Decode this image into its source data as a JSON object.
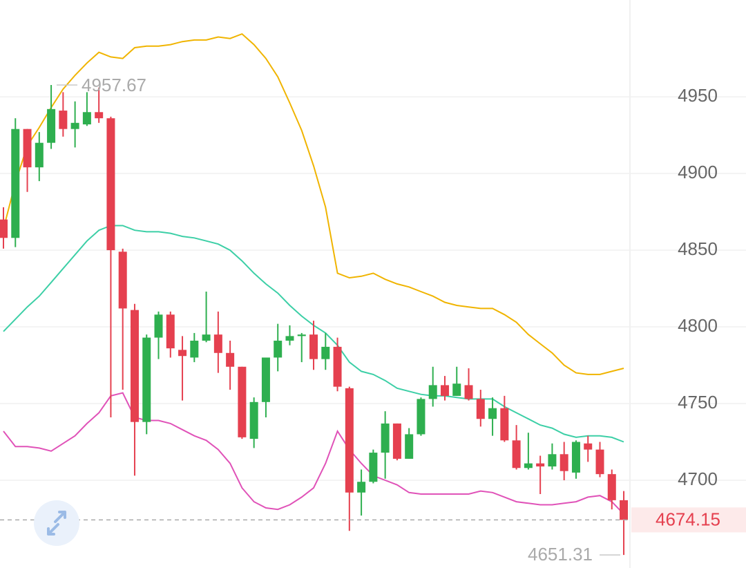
{
  "chart_data": {
    "type": "candlestick",
    "up_color": "#2eaf4f",
    "down_color": "#e5404f",
    "open": [
      4870,
      4858,
      4929,
      4904,
      4920,
      4941,
      4929,
      4932,
      4940,
      4936,
      4849,
      4811,
      4738,
      4793,
      4808,
      4785,
      4780,
      4791,
      4795,
      4783,
      4774,
      4727,
      4751,
      4780,
      4791,
      4794,
      4795,
      4779,
      4787,
      4760,
      4692,
      4699,
      4718,
      4737,
      4714,
      4730,
      4753,
      4762,
      4755,
      4762,
      4753,
      4740,
      4747,
      4726,
      4708,
      4711,
      4709,
      4717,
      4705,
      4724,
      4720,
      4704,
      4687
    ],
    "high": [
      4878,
      4936,
      4929,
      4927,
      4957.67,
      4953,
      4947,
      4953,
      4956,
      4937,
      4851,
      4815,
      4795,
      4810,
      4810,
      4794,
      4796,
      4823,
      4810,
      4791,
      4774,
      4754,
      4780,
      4802,
      4801,
      4796,
      4804,
      4796,
      4793,
      4761,
      4707,
      4720,
      4745,
      4737,
      4734,
      4754,
      4774,
      4768,
      4774,
      4773,
      4759,
      4754,
      4755,
      4736,
      4731,
      4716,
      4724,
      4725,
      4726,
      4729,
      4725,
      4707,
      4693
    ],
    "low": [
      4851,
      4852,
      4888,
      4895,
      4916,
      4924,
      4917,
      4931,
      4933,
      4741,
      4759,
      4703,
      4730,
      4779,
      4780,
      4752,
      4777,
      4790,
      4770,
      4759,
      4727,
      4721,
      4741,
      4771,
      4788,
      4777,
      4772,
      4772,
      4758,
      4667,
      4677,
      4698,
      4701,
      4713,
      4714,
      4729,
      4748,
      4752,
      4755,
      4752,
      4735,
      4729,
      4725,
      4707,
      4707,
      4691,
      4707,
      4700,
      4701,
      4712,
      4702,
      4681,
      4651.31
    ],
    "close": [
      4858,
      4929,
      4904,
      4920,
      4942,
      4929,
      4933,
      4940,
      4936,
      4850,
      4812,
      4738,
      4793,
      4808,
      4786,
      4781,
      4791,
      4795,
      4783,
      4774,
      4728,
      4751,
      4780,
      4791,
      4794,
      4795,
      4779,
      4787,
      4761,
      4692,
      4699,
      4718,
      4737,
      4714,
      4730,
      4753,
      4762,
      4755,
      4763,
      4753,
      4740,
      4747,
      4726,
      4708,
      4711,
      4709,
      4717,
      4706,
      4725,
      4720,
      4704,
      4687,
      4674.15
    ],
    "bands": [
      {
        "color": "#f0b400",
        "values": [
          4864,
          4894,
          4918,
          4930,
          4943,
          4955,
          4964,
          4972,
          4979,
          4976,
          4975,
          4982,
          4983,
          4983,
          4984,
          4986,
          4987,
          4987,
          4989,
          4988,
          4991,
          4984,
          4975,
          4963,
          4946,
          4928,
          4905,
          4878,
          4835,
          4832,
          4833,
          4835,
          4831,
          4828,
          4826,
          4823,
          4820,
          4816,
          4814,
          4813,
          4812,
          4812,
          4808,
          4803,
          4795,
          4789,
          4783,
          4775,
          4770,
          4769,
          4769,
          4771,
          4773
        ]
      },
      {
        "color": "#3ccfa6",
        "values": [
          4797,
          4805,
          4813,
          4820,
          4829,
          4838,
          4847,
          4856,
          4863,
          4866,
          4866,
          4863,
          4862,
          4862,
          4861,
          4859,
          4858,
          4856,
          4854,
          4850,
          4843,
          4835,
          4828,
          4822,
          4814,
          4807,
          4801,
          4796,
          4788,
          4777,
          4771,
          4769,
          4765,
          4760,
          4758,
          4756,
          4755,
          4755,
          4754,
          4753,
          4753,
          4753,
          4748,
          4744,
          4740,
          4736,
          4734,
          4730,
          4728,
          4729,
          4729,
          4728,
          4725
        ]
      },
      {
        "color": "#e052b8",
        "values": [
          4732,
          4722,
          4722,
          4721,
          4719,
          4724,
          4729,
          4737,
          4744,
          4755,
          4757,
          4741,
          4739,
          4739,
          4737,
          4733,
          4729,
          4726,
          4720,
          4711,
          4695,
          4686,
          4682,
          4681,
          4684,
          4689,
          4695,
          4711,
          4732,
          4720,
          4711,
          4703,
          4700,
          4697,
          4692,
          4691,
          4691,
          4691,
          4691,
          4691,
          4693,
          4692,
          4689,
          4686,
          4685,
          4684,
          4684,
          4685,
          4686,
          4689,
          4690,
          4686,
          4678
        ]
      }
    ],
    "ylim": [
      4642.8,
      5013.1
    ],
    "yticks": [
      4700,
      4750,
      4800,
      4850,
      4900,
      4950
    ],
    "grid": true,
    "max_label": 4957.67,
    "min_label": 4651.31,
    "last_price": 4674.15
  }
}
